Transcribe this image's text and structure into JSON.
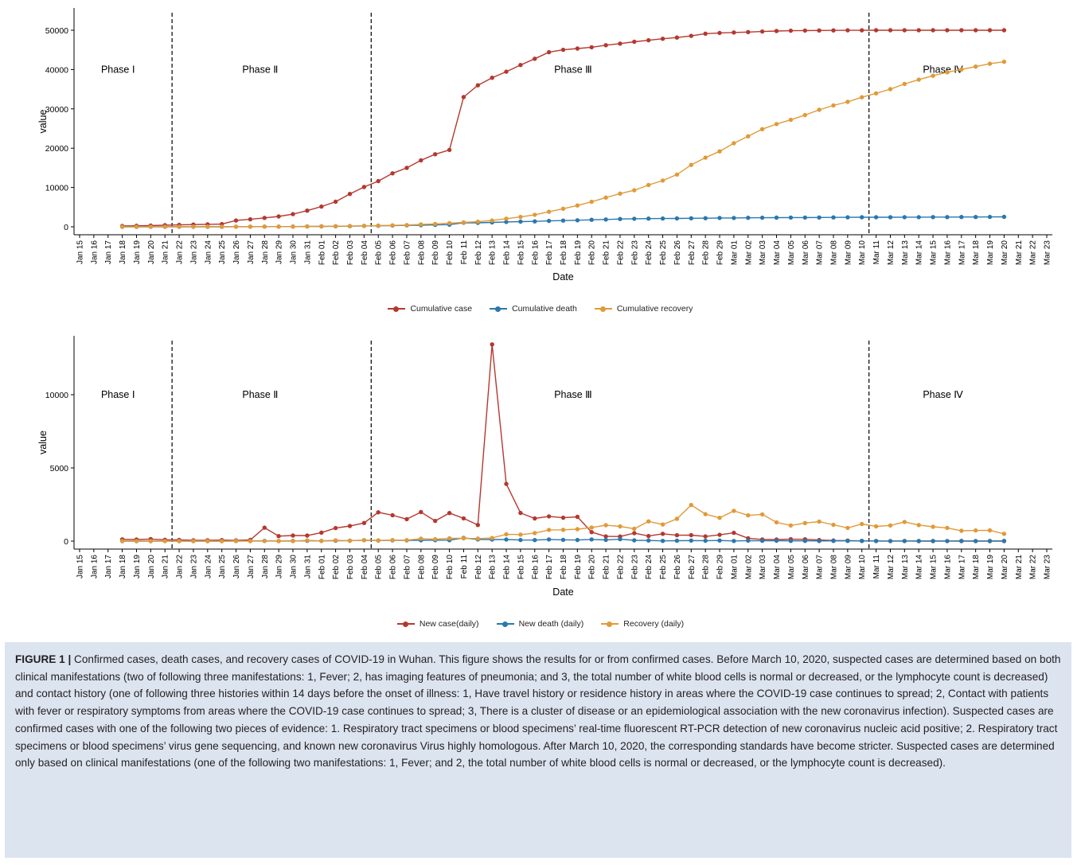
{
  "colors": {
    "red": "#b5382f",
    "blue": "#2a78ad",
    "orange": "#e09a38",
    "axis": "#000000"
  },
  "chart_data": [
    {
      "type": "line",
      "ylabel": "value",
      "xlabel": "Date",
      "ylim": [
        0,
        50000
      ],
      "yticks": [
        0,
        10000,
        20000,
        30000,
        40000,
        50000
      ],
      "grid": false,
      "legend_position": "bottom",
      "x_ticks": [
        "Jan 15",
        "Jan 16",
        "Jan 17",
        "Jan 18",
        "Jan 19",
        "Jan 20",
        "Jan 21",
        "Jan 22",
        "Jan 23",
        "Jan 24",
        "Jan 25",
        "Jan 26",
        "Jan 27",
        "Jan 28",
        "Jan 29",
        "Jan 30",
        "Jan 31",
        "Feb 01",
        "Feb 02",
        "Feb 03",
        "Feb 04",
        "Feb 05",
        "Feb 06",
        "Feb 07",
        "Feb 08",
        "Feb 09",
        "Feb 10",
        "Feb 11",
        "Feb 12",
        "Feb 13",
        "Feb 14",
        "Feb 15",
        "Feb 16",
        "Feb 17",
        "Feb 18",
        "Feb 19",
        "Feb 20",
        "Feb 21",
        "Feb 22",
        "Feb 23",
        "Feb 24",
        "Feb 25",
        "Feb 26",
        "Feb 27",
        "Feb 28",
        "Feb 29",
        "Mar 01",
        "Mar 02",
        "Mar 03",
        "Mar 04",
        "Mar 05",
        "Mar 06",
        "Mar 07",
        "Mar 08",
        "Mar 09",
        "Mar 10",
        "Mar 11",
        "Mar 12",
        "Mar 13",
        "Mar 14",
        "Mar 15",
        "Mar 16",
        "Mar 17",
        "Mar 18",
        "Mar 19",
        "Mar 20",
        "Mar 21",
        "Mar 22",
        "Mar 23"
      ],
      "phase_dividers": [
        "Jan 21",
        "Feb 04",
        "Mar 10"
      ],
      "phases": [
        {
          "label": "Phase Ⅰ",
          "x": "Jan 18",
          "y": 40000
        },
        {
          "label": "Phase Ⅱ",
          "x": "Jan 28",
          "y": 40000
        },
        {
          "label": "Phase Ⅲ",
          "x": "Feb 19",
          "y": 40000
        },
        {
          "label": "Phase Ⅳ",
          "x": "Mar 16",
          "y": 40000
        }
      ],
      "x_start": "Jan 18",
      "series": [
        {
          "name": "Cumulative case",
          "color_key": "red",
          "values": [
            198,
            258,
            320,
            410,
            495,
            572,
            618,
            698,
            1590,
            1905,
            2261,
            2639,
            3215,
            4109,
            5142,
            6384,
            8351,
            10117,
            11618,
            13603,
            14982,
            16902,
            18454,
            19558,
            32994,
            35991,
            37914,
            39462,
            41152,
            42752,
            44412,
            45027,
            45346,
            45660,
            46201,
            46607,
            47071,
            47441,
            47824,
            48137,
            48557,
            49122,
            49315,
            49426,
            49540,
            49671,
            49797,
            49871,
            49912,
            49948,
            49965,
            49978,
            49986,
            49991,
            49995,
            49999,
            50003,
            50004,
            50005,
            50005,
            50005,
            50006,
            50006
          ]
        },
        {
          "name": "Cumulative death",
          "color_key": "blue",
          "values": [
            3,
            3,
            4,
            7,
            7,
            9,
            9,
            10,
            15,
            24,
            40,
            45,
            63,
            85,
            104,
            129,
            159,
            224,
            265,
            313,
            362,
            414,
            478,
            545,
            1036,
            1016,
            1123,
            1233,
            1309,
            1381,
            1497,
            1585,
            1660,
            1774,
            1856,
            1987,
            2043,
            2085,
            2104,
            2132,
            2169,
            2195,
            2238,
            2251,
            2282,
            2305,
            2328,
            2343,
            2358,
            2370,
            2388,
            2404,
            2423,
            2430,
            2436,
            2446,
            2456,
            2469,
            2476,
            2490,
            2498,
            2508,
            2524
          ]
        },
        {
          "name": "Cumulative recovery",
          "color_key": "orange",
          "values": [
            25,
            25,
            25,
            25,
            28,
            31,
            32,
            32,
            42,
            43,
            47,
            48,
            50,
            97,
            113,
            166,
            186,
            246,
            297,
            369,
            436,
            604,
            735,
            926,
            1115,
            1289,
            1600,
            2070,
            2514,
            3062,
            3826,
            4599,
            5416,
            6348,
            7436,
            8443,
            9286,
            10632,
            11766,
            13289,
            15755,
            17599,
            19192,
            21257,
            23019,
            24847,
            26127,
            27199,
            28430,
            29760,
            30876,
            31780,
            32948,
            33954,
            35027,
            36339,
            37436,
            38413,
            39317,
            40023,
            40753,
            41487,
            41989
          ]
        }
      ]
    },
    {
      "type": "line",
      "ylabel": "value",
      "xlabel": "Date",
      "ylim": [
        0,
        14000
      ],
      "yticks": [
        0,
        5000,
        10000
      ],
      "grid": false,
      "legend_position": "bottom",
      "phase_dividers": [
        "Jan 21",
        "Feb 04",
        "Mar 10"
      ],
      "phases": [
        {
          "label": "Phase Ⅰ",
          "x": "Jan 18",
          "y": 10000
        },
        {
          "label": "Phase Ⅱ",
          "x": "Jan 28",
          "y": 10000
        },
        {
          "label": "Phase Ⅲ",
          "x": "Feb 19",
          "y": 10000
        },
        {
          "label": "Phase Ⅳ",
          "x": "Mar 16",
          "y": 10000
        }
      ],
      "x_start": "Jan 18",
      "series": [
        {
          "name": "New case(daily)",
          "color_key": "red",
          "values": [
            120,
            110,
            140,
            90,
            80,
            60,
            60,
            70,
            50,
            80,
            920,
            340,
            380,
            380,
            580,
            890,
            1030,
            1240,
            1967,
            1766,
            1501,
            1985,
            1379,
            1920,
            1552,
            1104,
            13436,
            3910,
            1923,
            1548,
            1690,
            1600,
            1660,
            615,
            319,
            314,
            542,
            348,
            499,
            401,
            409,
            319,
            427,
            565,
            196,
            114,
            111,
            131,
            126,
            74,
            41,
            36,
            17,
            13,
            8,
            6,
            0,
            2,
            4,
            2,
            1,
            0,
            1
          ]
        },
        {
          "name": "New death (daily)",
          "color_key": "blue",
          "values": [
            0,
            0,
            1,
            3,
            0,
            2,
            0,
            1,
            5,
            9,
            16,
            5,
            18,
            22,
            19,
            25,
            30,
            65,
            41,
            48,
            49,
            52,
            64,
            67,
            216,
            116,
            107,
            110,
            76,
            72,
            116,
            88,
            75,
            114,
            82,
            131,
            56,
            42,
            19,
            28,
            37,
            26,
            43,
            13,
            31,
            23,
            28,
            15,
            15,
            12,
            18,
            16,
            19,
            7,
            6,
            10,
            10,
            13,
            7,
            14,
            8,
            10,
            16
          ]
        },
        {
          "name": "Recovery (daily)",
          "color_key": "orange",
          "values": [
            0,
            0,
            0,
            0,
            3,
            3,
            1,
            0,
            10,
            1,
            4,
            1,
            2,
            47,
            16,
            53,
            20,
            60,
            51,
            72,
            67,
            168,
            131,
            191,
            189,
            174,
            211,
            470,
            444,
            548,
            764,
            773,
            817,
            932,
            1088,
            1007,
            843,
            1346,
            1134,
            1523,
            2466,
            1844,
            1593,
            2065,
            1762,
            1828,
            1280,
            1072,
            1231,
            1330,
            1116,
            904,
            1168,
            1006,
            1073,
            1312,
            1097,
            977,
            904,
            706,
            730,
            734,
            502
          ]
        }
      ]
    }
  ],
  "legend_top": [
    "Cumulative case",
    "Cumulative death",
    "Cumulative recovery"
  ],
  "legend_bottom": [
    "New case(daily)",
    "New death (daily)",
    "Recovery (daily)"
  ],
  "caption": {
    "label": "FIGURE 1 |",
    "text": " Confirmed cases, death cases, and recovery cases of COVID-19 in Wuhan. This figure shows the results for or from confirmed cases. Before March 10, 2020, suspected cases are determined based on both clinical manifestations (two of following three manifestations: 1, Fever; 2, has imaging features of pneumonia; and 3, the total number of white blood cells is normal or decreased, or the lymphocyte count is decreased) and contact history (one of following three histories within 14 days before the onset of illness: 1, Have travel history or residence history in areas where the COVID-19 case continues to spread; 2, Contact with patients with fever or respiratory symptoms from areas where the COVID-19 case continues to spread; 3, There is a cluster of disease or an epidemiological association with the new coronavirus infection). Suspected cases are confirmed cases with one of the following two pieces of evidence: 1. Respiratory tract specimens or blood specimens’ real-time fluorescent RT-PCR detection of new coronavirus nucleic acid positive; 2. Respiratory tract specimens or blood specimens’ virus gene sequencing, and known new coronavirus Virus highly homologous. After March 10, 2020, the corresponding standards have become stricter. Suspected cases are determined only based on clinical manifestations (one of the following two manifestations: 1, Fever; and 2, the total number of white blood cells is normal or decreased, or the lymphocyte count is decreased)."
  }
}
